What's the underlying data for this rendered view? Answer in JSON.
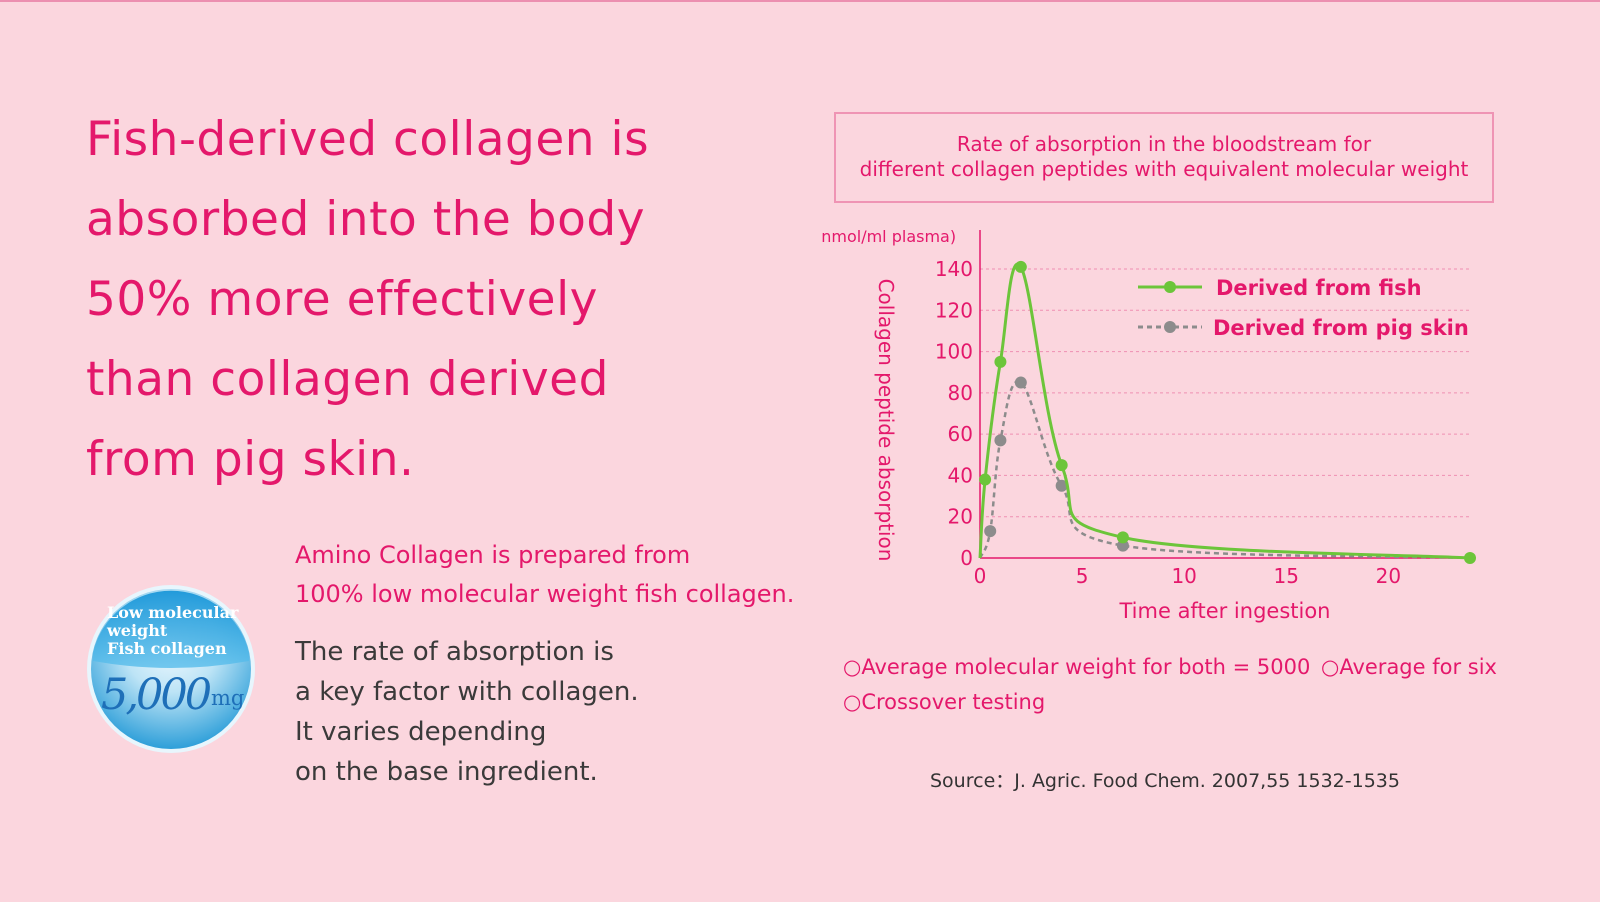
{
  "headline": [
    "Fish-derived collagen is",
    "absorbed into the body",
    "50% more effectively",
    "than collagen derived",
    "from pig skin."
  ],
  "subheading": [
    "Amino Collagen is prepared from",
    "100% low molecular weight fish collagen."
  ],
  "body_text": [
    "The rate of absorption is",
    "a key factor with collagen.",
    "It varies depending",
    "on the base ingredient."
  ],
  "badge": {
    "line1": "Low molecular",
    "line2": "weight",
    "line3": "Fish collagen",
    "amount": "5,000",
    "unit": "mg"
  },
  "colors": {
    "brand_pink": "#e4186b",
    "background": "#fbd6de",
    "fish_series": "#6cc53a",
    "pig_series": "#8c8c8c"
  },
  "notes": [
    "○Average molecular weight for both = 5000",
    "○Average for six",
    "○Crossover testing"
  ],
  "source": "Source：J. Agric. Food Chem. 2007,55 1532-1535",
  "chart_data": {
    "type": "line",
    "title": [
      "Rate of absorption in the bloodstream for",
      "different collagen peptides with equivalent molecular weight"
    ],
    "unit_label": "(nmol/ml plasma)",
    "xlabel": "Time after ingestion",
    "ylabel": "Collagen peptide absorption",
    "xlim": [
      0,
      24
    ],
    "ylim": [
      0,
      140
    ],
    "xticks": [
      0,
      5,
      10,
      15,
      20
    ],
    "yticks": [
      0,
      20,
      40,
      60,
      80,
      100,
      120,
      140
    ],
    "grid": "horizontal dashed",
    "legend_position": "top-right",
    "series": [
      {
        "name": "Derived from fish",
        "color": "#6cc53a",
        "dash": "solid",
        "x": [
          0,
          0.25,
          1,
          2,
          4,
          7,
          24
        ],
        "y": [
          0,
          38,
          95,
          141,
          45,
          10,
          0
        ]
      },
      {
        "name": "Derived from pig skin",
        "color": "#8c8c8c",
        "dash": "dashed",
        "x": [
          0,
          0.5,
          1,
          2,
          4,
          7,
          24
        ],
        "y": [
          0,
          13,
          57,
          85,
          35,
          6,
          0
        ]
      }
    ]
  }
}
